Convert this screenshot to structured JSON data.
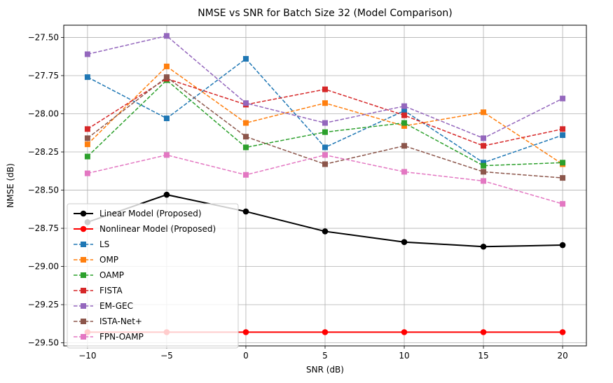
{
  "chart_data": {
    "type": "line",
    "title": "NMSE vs SNR for Batch Size 32 (Model Comparison)",
    "xlabel": "SNR (dB)",
    "ylabel": "NMSE (dB)",
    "x": [
      -10,
      -5,
      0,
      5,
      10,
      15,
      20
    ],
    "xlim": [
      -11.5,
      21.5
    ],
    "ylim": [
      -29.52,
      -27.42
    ],
    "xticks": [
      -10,
      -5,
      0,
      5,
      10,
      15,
      20
    ],
    "xtick_labels": [
      "−10",
      "−5",
      "0",
      "5",
      "10",
      "15",
      "20"
    ],
    "yticks": [
      -27.5,
      -27.75,
      -28.0,
      -28.25,
      -28.5,
      -28.75,
      -29.0,
      -29.25,
      -29.5
    ],
    "ytick_labels": [
      "−27.50",
      "−27.75",
      "−28.00",
      "−28.25",
      "−28.50",
      "−28.75",
      "−29.00",
      "−29.25",
      "−29.50"
    ],
    "grid": true,
    "legend_position": "lower-left",
    "series": [
      {
        "name": "Linear Model (Proposed)",
        "color": "#000000",
        "style": "solid",
        "marker": "circle",
        "values": [
          -28.71,
          -28.53,
          -28.64,
          -28.77,
          -28.84,
          -28.87,
          -28.86
        ]
      },
      {
        "name": "Nonlinear Model (Proposed)",
        "color": "#ff0000",
        "style": "solid",
        "marker": "circle",
        "values": [
          -29.43,
          -29.43,
          -29.43,
          -29.43,
          -29.43,
          -29.43,
          -29.43
        ]
      },
      {
        "name": "LS",
        "color": "#1f77b4",
        "style": "dashed",
        "marker": "square",
        "values": [
          -27.76,
          -28.03,
          -27.64,
          -28.22,
          -27.98,
          -28.32,
          -28.14
        ]
      },
      {
        "name": "OMP",
        "color": "#ff7f0e",
        "style": "dashed",
        "marker": "square",
        "values": [
          -28.2,
          -27.69,
          -28.06,
          -27.93,
          -28.08,
          -27.99,
          -28.33
        ]
      },
      {
        "name": "OAMP",
        "color": "#2ca02c",
        "style": "dashed",
        "marker": "square",
        "values": [
          -28.28,
          -27.78,
          -28.22,
          -28.12,
          -28.06,
          -28.34,
          -28.32
        ]
      },
      {
        "name": "FISTA",
        "color": "#d62728",
        "style": "dashed",
        "marker": "square",
        "values": [
          -28.1,
          -27.77,
          -27.94,
          -27.84,
          -28.01,
          -28.21,
          -28.1
        ]
      },
      {
        "name": "EM-GEC",
        "color": "#9467bd",
        "style": "dashed",
        "marker": "square",
        "values": [
          -27.61,
          -27.49,
          -27.93,
          -28.06,
          -27.95,
          -28.16,
          -27.9
        ]
      },
      {
        "name": "ISTA-Net+",
        "color": "#8c564b",
        "style": "dashed",
        "marker": "square",
        "values": [
          -28.16,
          -27.76,
          -28.15,
          -28.33,
          -28.21,
          -28.38,
          -28.42
        ]
      },
      {
        "name": "FPN-OAMP",
        "color": "#e377c2",
        "style": "dashed",
        "marker": "square",
        "values": [
          -28.39,
          -28.27,
          -28.4,
          -28.27,
          -28.38,
          -28.44,
          -28.59
        ]
      }
    ]
  }
}
